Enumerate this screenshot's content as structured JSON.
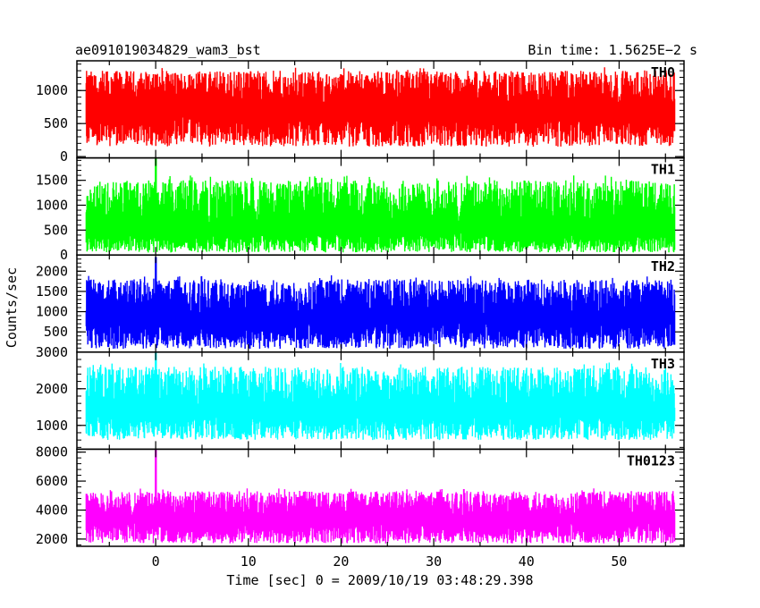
{
  "chart_data": {
    "type": "line",
    "title_left": "ae091019034829_wam3_bst",
    "title_right": "Bin time: 1.5625E−2 s",
    "ylabel": "Counts/sec",
    "xlabel": "Time [sec] 0 = 2009/10/19 03:48:29.398",
    "x_range": [
      -8.5,
      57
    ],
    "x_data_range": [
      -7.5,
      56
    ],
    "x_ticks": [
      0,
      10,
      20,
      30,
      40,
      50
    ],
    "x_tick_labels": [
      "0",
      "10",
      "20",
      "30",
      "40",
      "50"
    ],
    "grid": false,
    "panels": [
      {
        "name": "TH0",
        "color": "#ff0000",
        "ylim": [
          -20,
          1450
        ],
        "y_ticks": [
          0,
          500,
          1000
        ],
        "y_tick_labels": [
          "0",
          "500",
          "1000"
        ],
        "mean": 700,
        "typical_min": 150,
        "typical_max": 1300,
        "burst_time": null,
        "burst_peak": null
      },
      {
        "name": "TH1",
        "color": "#00ff00",
        "ylim": [
          0,
          1950
        ],
        "y_ticks": [
          0,
          500,
          1000,
          1500
        ],
        "y_tick_labels": [
          "0",
          "500",
          "1000",
          "1500"
        ],
        "mean": 500,
        "typical_min": 50,
        "typical_max": 1500,
        "burst_time": 0,
        "burst_peak": 1950
      },
      {
        "name": "TH2",
        "color": "#0000ff",
        "ylim": [
          0,
          2400
        ],
        "y_ticks": [
          500,
          1000,
          1500,
          2000
        ],
        "y_tick_labels": [
          "500",
          "1000",
          "1500",
          "2000"
        ],
        "mean": 800,
        "typical_min": 80,
        "typical_max": 1800,
        "burst_time": 0,
        "burst_peak": 2350
      },
      {
        "name": "TH3",
        "color": "#00ffff",
        "ylim": [
          350,
          3000
        ],
        "y_ticks": [
          1000,
          2000,
          3000
        ],
        "y_tick_labels": [
          "1000",
          "2000",
          "3000"
        ],
        "mean": 1350,
        "typical_min": 600,
        "typical_max": 2600,
        "burst_time": 0,
        "burst_peak": 3000
      },
      {
        "name": "TH0123",
        "color": "#ff00ff",
        "ylim": [
          1500,
          8200
        ],
        "y_ticks": [
          2000,
          4000,
          6000,
          8000
        ],
        "y_tick_labels": [
          "2000",
          "4000",
          "6000",
          "8000"
        ],
        "mean": 3300,
        "typical_min": 1700,
        "typical_max": 5300,
        "burst_time": 0,
        "burst_peak": 8200
      }
    ]
  }
}
